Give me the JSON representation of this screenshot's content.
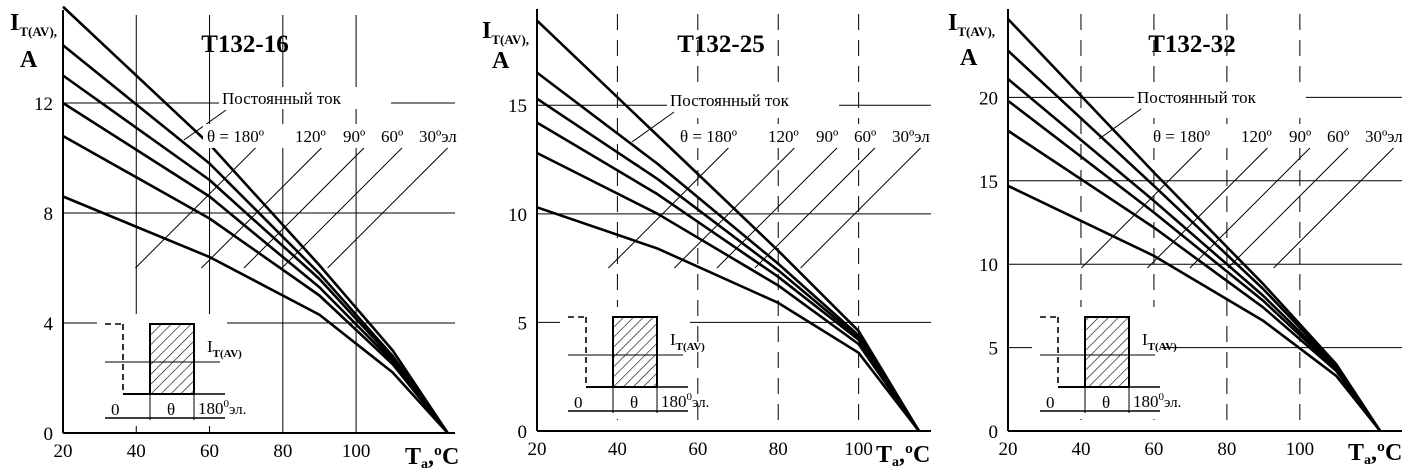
{
  "chart_data": [
    {
      "type": "line",
      "title": "T132-16",
      "ylabel": "I",
      "ylabel_sub": "T(AV),",
      "ylabel_unit": "A",
      "xlabel": "T",
      "xlabel_sub": "a",
      "xlabel_unit": ",ºC",
      "xlim": [
        20,
        127
      ],
      "ylim": [
        0,
        15.2
      ],
      "xticks": [
        "20",
        "40",
        "60",
        "80",
        "100"
      ],
      "yticks": [
        "0",
        "4",
        "8",
        "12"
      ],
      "grid": true,
      "dc_label": "Постоянный ток",
      "angle_labels": [
        "θ = 180º",
        "120º",
        "90º",
        "60º",
        "30ºэл"
      ],
      "series": [
        {
          "name": "Постоянный ток",
          "x": [
            20,
            60,
            90,
            110,
            125
          ],
          "y": [
            15.5,
            10.5,
            6.1,
            3.0,
            0
          ]
        },
        {
          "name": "180º",
          "x": [
            20,
            60,
            90,
            110,
            125
          ],
          "y": [
            14.1,
            9.8,
            5.8,
            2.8,
            0
          ]
        },
        {
          "name": "120º",
          "x": [
            20,
            60,
            90,
            110,
            125
          ],
          "y": [
            13.0,
            9.2,
            5.6,
            2.7,
            0
          ]
        },
        {
          "name": "90º",
          "x": [
            20,
            60,
            90,
            110,
            125
          ],
          "y": [
            12.0,
            8.6,
            5.3,
            2.6,
            0
          ]
        },
        {
          "name": "60º",
          "x": [
            20,
            60,
            90,
            110,
            125
          ],
          "y": [
            10.8,
            7.8,
            5.0,
            2.5,
            0
          ]
        },
        {
          "name": "30ºэл",
          "x": [
            20,
            60,
            90,
            110,
            125
          ],
          "y": [
            8.6,
            6.4,
            4.3,
            2.2,
            0
          ]
        }
      ],
      "inset": {
        "current_label": "I",
        "current_sub": "T(AV)",
        "zero": "0",
        "theta": "θ",
        "end": "180",
        "end_sup": "0",
        "end_unit": "эл."
      }
    },
    {
      "type": "line",
      "title": "T132-25",
      "ylabel": "I",
      "ylabel_sub": "T(AV),",
      "ylabel_unit": "A",
      "xlabel": "T",
      "xlabel_sub": "a",
      "xlabel_unit": ",ºC",
      "xlim": [
        20,
        118
      ],
      "ylim": [
        0,
        19.2
      ],
      "xticks": [
        "20",
        "40",
        "60",
        "80",
        "100"
      ],
      "yticks": [
        "0",
        "5",
        "10",
        "15"
      ],
      "grid": true,
      "dc_label": "Постоянный ток",
      "angle_labels": [
        "θ = 180º",
        "120º",
        "90º",
        "60º",
        "30ºэл"
      ],
      "series": [
        {
          "name": "Постоянный ток",
          "x": [
            20,
            50,
            80,
            100,
            115
          ],
          "y": [
            18.9,
            13.6,
            8.3,
            4.6,
            0
          ]
        },
        {
          "name": "180º",
          "x": [
            20,
            50,
            80,
            100,
            115
          ],
          "y": [
            16.5,
            12.3,
            7.7,
            4.4,
            0
          ]
        },
        {
          "name": "120º",
          "x": [
            20,
            50,
            80,
            100,
            115
          ],
          "y": [
            15.3,
            11.6,
            7.4,
            4.3,
            0
          ]
        },
        {
          "name": "90º",
          "x": [
            20,
            50,
            80,
            100,
            115
          ],
          "y": [
            14.2,
            10.9,
            7.1,
            4.2,
            0
          ]
        },
        {
          "name": "60º",
          "x": [
            20,
            50,
            80,
            100,
            115
          ],
          "y": [
            12.8,
            10.0,
            6.7,
            4.0,
            0
          ]
        },
        {
          "name": "30ºэл",
          "x": [
            20,
            50,
            80,
            100,
            115
          ],
          "y": [
            10.3,
            8.4,
            5.9,
            3.6,
            0
          ]
        }
      ],
      "inset": {
        "current_label": "I",
        "current_sub": "T(AV)",
        "zero": "0",
        "theta": "θ",
        "end": "180",
        "end_sup": "0",
        "end_unit": "эл."
      }
    },
    {
      "type": "line",
      "title": "T132-32",
      "ylabel": "I",
      "ylabel_sub": "T(AV),",
      "ylabel_unit": "A",
      "xlabel": "T",
      "xlabel_sub": "a",
      "xlabel_unit": ",ºC",
      "xlim": [
        20,
        128
      ],
      "ylim": [
        0,
        25
      ],
      "xticks": [
        "20",
        "40",
        "60",
        "80",
        "100"
      ],
      "yticks": [
        "0",
        "5",
        "10",
        "15",
        "20"
      ],
      "grid": true,
      "dc_label": "Постоянный ток",
      "angle_labels": [
        "θ = 180º",
        "120º",
        "90º",
        "60º",
        "30ºэл"
      ],
      "series": [
        {
          "name": "Постоянный ток",
          "x": [
            20,
            60,
            90,
            110,
            122
          ],
          "y": [
            24.7,
            15.5,
            8.8,
            4.0,
            0
          ]
        },
        {
          "name": "180º",
          "x": [
            20,
            60,
            90,
            110,
            122
          ],
          "y": [
            22.8,
            14.7,
            8.5,
            3.9,
            0
          ]
        },
        {
          "name": "120º",
          "x": [
            20,
            60,
            90,
            110,
            122
          ],
          "y": [
            21.1,
            13.8,
            8.1,
            3.8,
            0
          ]
        },
        {
          "name": "90º",
          "x": [
            20,
            60,
            90,
            110,
            122
          ],
          "y": [
            19.8,
            13.1,
            7.8,
            3.7,
            0
          ]
        },
        {
          "name": "60º",
          "x": [
            20,
            60,
            90,
            110,
            122
          ],
          "y": [
            18.0,
            12.2,
            7.4,
            3.6,
            0
          ]
        },
        {
          "name": "30ºэл",
          "x": [
            20,
            60,
            90,
            110,
            122
          ],
          "y": [
            14.7,
            10.5,
            6.6,
            3.3,
            0
          ]
        }
      ],
      "inset": {
        "current_label": "I",
        "current_sub": "T(AV)",
        "zero": "0",
        "theta": "θ",
        "end": "180",
        "end_sup": "0",
        "end_unit": "эл."
      }
    }
  ]
}
